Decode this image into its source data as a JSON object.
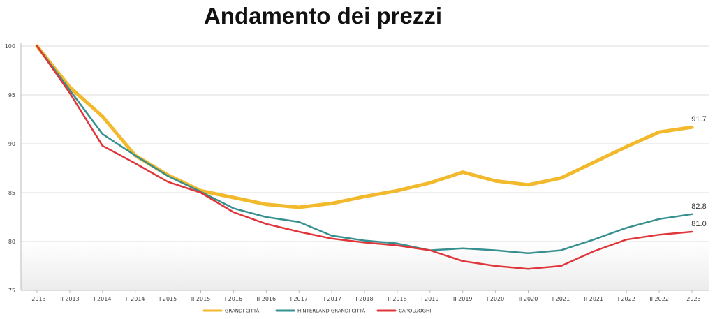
{
  "chart_data": {
    "type": "line",
    "title": "Andamento dei prezzi",
    "xlabel": "",
    "ylabel": "",
    "ylim": [
      75,
      100
    ],
    "yticks": [
      75,
      80,
      85,
      90,
      95,
      100
    ],
    "grid": true,
    "legend_position": "bottom",
    "categories": [
      "I 2013",
      "II 2013",
      "I 2014",
      "II 2014",
      "I 2015",
      "II 2015",
      "I 2016",
      "II 2016",
      "I 2017",
      "II 2017",
      "I 2018",
      "II 2018",
      "I 2019",
      "II 2019",
      "I 2020",
      "II 2020",
      "I 2021",
      "II 2021",
      "I 2022",
      "II 2022",
      "I 2023"
    ],
    "series": [
      {
        "name": "GRANDI CITTÀ",
        "color": "#f2b92c",
        "values": [
          100,
          95.8,
          92.8,
          88.8,
          86.8,
          85.2,
          84.5,
          83.8,
          83.5,
          83.9,
          84.6,
          85.2,
          86.0,
          87.1,
          86.2,
          85.8,
          86.5,
          88.1,
          89.7,
          91.2,
          91.7
        ],
        "end_label": "91.7"
      },
      {
        "name": "HINTERLAND GRANDI CITTÀ",
        "color": "#35908f",
        "values": [
          100,
          95.5,
          91.0,
          88.8,
          86.7,
          85.1,
          83.4,
          82.5,
          82.0,
          80.6,
          80.1,
          79.8,
          79.1,
          79.3,
          79.1,
          78.8,
          79.1,
          80.2,
          81.4,
          82.3,
          82.8
        ],
        "end_label": "82.8"
      },
      {
        "name": "CAPOLUOGHI",
        "color": "#e0363b",
        "values": [
          100,
          95.2,
          89.8,
          88.0,
          86.1,
          85.0,
          83.0,
          81.8,
          81.0,
          80.3,
          79.9,
          79.6,
          79.1,
          78.0,
          77.5,
          77.2,
          77.5,
          79.0,
          80.2,
          80.7,
          81.0
        ],
        "end_label": "81.0"
      }
    ]
  }
}
